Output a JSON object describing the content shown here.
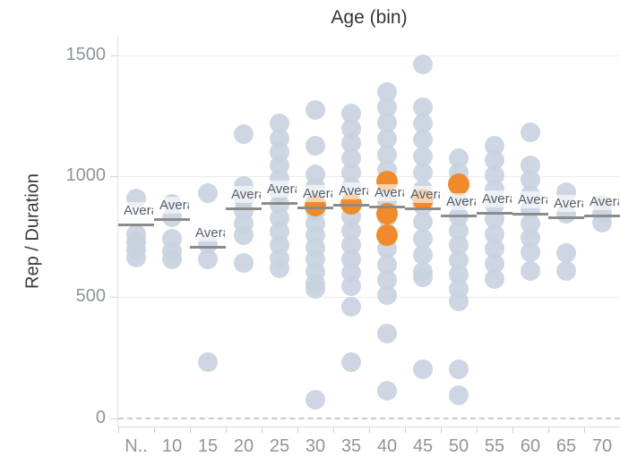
{
  "header": {
    "title": "Age (bin)"
  },
  "colors": {
    "dot_gray": "#c9d3df",
    "dot_highlight": "#f08a2b",
    "average_line": "#8b8b8b",
    "average_label_text": "#55606b",
    "axis_text": "#8d959c",
    "title_text": "#343434",
    "gridline": "#ececec",
    "zero_line_dash": "#c9c9c9"
  },
  "average_reference": {
    "label_text": "Average",
    "visible_truncated_as": "Ave"
  },
  "chart_data": {
    "type": "scatter",
    "subtype": "strip-plot-with-average-reference-lines",
    "title": "Age (bin)",
    "xlabel": "Age (bin)",
    "ylabel": "Rep / Duration",
    "ylim": [
      0,
      1580
    ],
    "grid": "horizontal, light; dashed line at 0",
    "legend": "none",
    "y_ticks": [
      0,
      500,
      1000,
      1500
    ],
    "categories": [
      "N..",
      "10",
      "15",
      "20",
      "25",
      "30",
      "35",
      "40",
      "45",
      "50",
      "55",
      "60",
      "65",
      "70"
    ],
    "columns": [
      {
        "bin": "N..",
        "average": 800,
        "values": [
          908,
          760,
          730,
          695,
          665
        ],
        "highlighted": []
      },
      {
        "bin": "10",
        "average": 823,
        "values": [
          885,
          830,
          742,
          690,
          656
        ],
        "highlighted": []
      },
      {
        "bin": "15",
        "average": 708,
        "values": [
          930,
          720,
          655,
          230
        ],
        "highlighted": []
      },
      {
        "bin": "20",
        "average": 867,
        "values": [
          1173,
          960,
          905,
          855,
          805,
          755,
          640
        ],
        "highlighted": []
      },
      {
        "bin": "25",
        "average": 890,
        "values": [
          1218,
          1155,
          1100,
          1045,
          990,
          935,
          880,
          825,
          770,
          715,
          660,
          620
        ],
        "highlighted": []
      },
      {
        "bin": "30",
        "average": 871,
        "values": [
          1274,
          1126,
          1007,
          955,
          905,
          855,
          805,
          755,
          705,
          655,
          605,
          555,
          535,
          76
        ],
        "highlighted": [
          878
        ]
      },
      {
        "bin": "35",
        "average": 882,
        "values": [
          1259,
          1195,
          1135,
          1075,
          1015,
          955,
          895,
          835,
          775,
          715,
          655,
          600,
          545,
          460,
          231
        ],
        "highlighted": [
          886
        ]
      },
      {
        "bin": "40",
        "average": 875,
        "values": [
          1348,
          1285,
          1220,
          1155,
          1090,
          1025,
          960,
          895,
          830,
          765,
          700,
          635,
          570,
          510,
          349,
          113
        ],
        "highlighted": [
          978,
          845,
          756
        ]
      },
      {
        "bin": "45",
        "average": 865,
        "values": [
          1462,
          1285,
          1218,
          1150,
          1082,
          1014,
          946,
          878,
          810,
          742,
          674,
          606,
          582,
          202
        ],
        "highlighted": [
          905
        ]
      },
      {
        "bin": "50",
        "average": 837,
        "values": [
          1074,
          1014,
          954,
          894,
          834,
          774,
          714,
          654,
          594,
          534,
          483,
          202,
          94
        ],
        "highlighted": [
          967
        ]
      },
      {
        "bin": "55",
        "average": 848,
        "values": [
          1126,
          1065,
          1004,
          943,
          882,
          821,
          760,
          699,
          638,
          575
        ],
        "highlighted": []
      },
      {
        "bin": "60",
        "average": 845,
        "values": [
          1181,
          1044,
          984,
          924,
          864,
          804,
          744,
          684,
          608
        ],
        "highlighted": []
      },
      {
        "bin": "65",
        "average": 830,
        "values": [
          933,
          845,
          682,
          608
        ],
        "highlighted": []
      },
      {
        "bin": "70",
        "average": 838,
        "values": [
          880,
          845,
          808
        ],
        "highlighted": []
      }
    ]
  }
}
